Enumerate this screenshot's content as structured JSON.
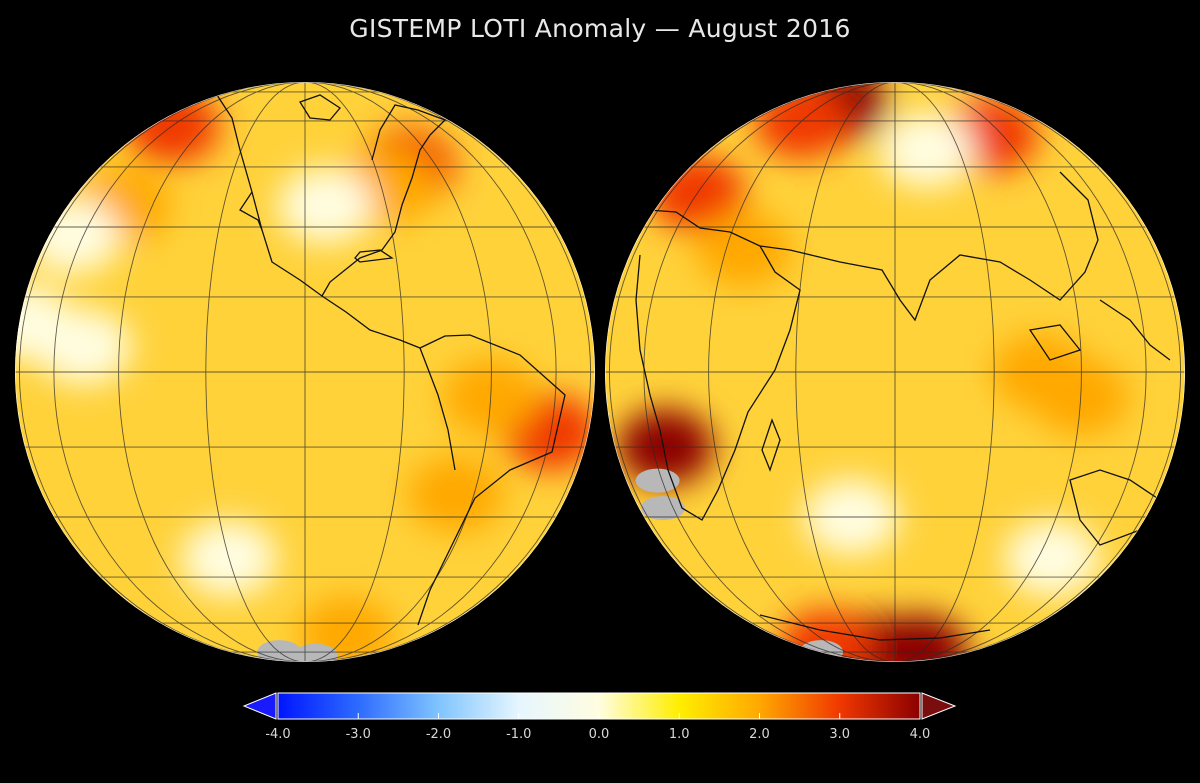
{
  "title": "GISTEMP LOTI Anomaly — August 2016",
  "colorbar": {
    "min": -4.0,
    "max": 4.0,
    "extend": "both",
    "ticks": [
      "-4.0",
      "-3.0",
      "-2.0",
      "-1.0",
      "0.0",
      "1.0",
      "2.0",
      "3.0",
      "4.0"
    ],
    "colors": [
      "#0015ff",
      "#2d6bff",
      "#7fc4ff",
      "#e6f6ff",
      "#fffde0",
      "#ffee00",
      "#ffa800",
      "#f03800",
      "#8c0000"
    ],
    "under_color": "#1a1aff",
    "over_color": "#7a0d0d",
    "missing_color": "#b8b8b8"
  },
  "maps": [
    {
      "name": "western-hemisphere",
      "center_lon": -100,
      "hotspots": [
        {
          "lon": -160,
          "lat": 58,
          "value": 2.6
        },
        {
          "lon": -70,
          "lat": 45,
          "value": 2.8
        },
        {
          "lon": -78,
          "lat": 40,
          "value": 2.4
        },
        {
          "lon": -40,
          "lat": -12,
          "value": 3.3
        },
        {
          "lon": -60,
          "lat": -5,
          "value": 2.0
        },
        {
          "lon": -65,
          "lat": -25,
          "value": 2.2
        },
        {
          "lon": -150,
          "lat": 35,
          "value": 1.6
        },
        {
          "lon": -95,
          "lat": 35,
          "value": 0.2
        },
        {
          "lon": -150,
          "lat": 5,
          "value": 0.0
        },
        {
          "lon": -180,
          "lat": 10,
          "value": 0.1
        },
        {
          "lon": -120,
          "lat": -40,
          "value": 0.1
        },
        {
          "lon": -165,
          "lat": 28,
          "value": -0.4
        },
        {
          "lon": -80,
          "lat": -65,
          "value": 2.0
        }
      ],
      "missing": [
        {
          "lon": -120,
          "lat": -75
        },
        {
          "lon": -90,
          "lat": -78
        }
      ]
    },
    {
      "name": "eastern-hemisphere",
      "center_lon": 80,
      "hotspots": [
        {
          "lon": 50,
          "lat": 68,
          "value": 3.6
        },
        {
          "lon": 40,
          "lat": 60,
          "value": 3.2
        },
        {
          "lon": 115,
          "lat": 55,
          "value": 2.8
        },
        {
          "lon": 20,
          "lat": 38,
          "value": 2.6
        },
        {
          "lon": 45,
          "lat": 25,
          "value": 2.4
        },
        {
          "lon": 25,
          "lat": -15,
          "value": 3.6
        },
        {
          "lon": 110,
          "lat": 0,
          "value": 2.0
        },
        {
          "lon": 120,
          "lat": -5,
          "value": 1.8
        },
        {
          "lon": 90,
          "lat": 50,
          "value": 0.3
        },
        {
          "lon": 70,
          "lat": -30,
          "value": 0.1
        },
        {
          "lon": 125,
          "lat": -40,
          "value": -0.2
        },
        {
          "lon": 60,
          "lat": -75,
          "value": 3.8
        },
        {
          "lon": 100,
          "lat": -75,
          "value": 3.7
        },
        {
          "lon": 30,
          "lat": -72,
          "value": 3.4
        }
      ],
      "missing": [
        {
          "lon": 18,
          "lat": -22
        },
        {
          "lon": 15,
          "lat": -28
        },
        {
          "lon": 0,
          "lat": -75
        }
      ]
    }
  ]
}
